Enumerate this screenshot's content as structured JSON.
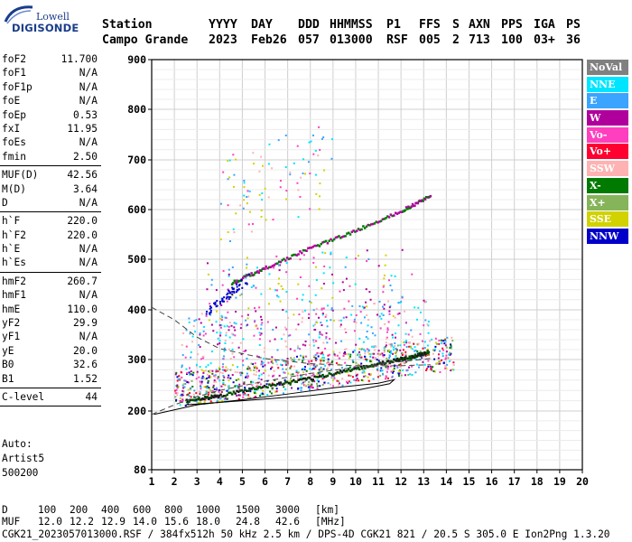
{
  "logo": {
    "brand_top": "Lowell",
    "brand_bottom": "DIGISONDE"
  },
  "header": {
    "row1": [
      "Station",
      "YYYY",
      "DAY",
      "DDD",
      "HHMMSS",
      "P1",
      "FFS",
      "S",
      "AXN",
      "PPS",
      "IGA",
      "PS"
    ],
    "row2": [
      "Campo Grande",
      "2023",
      "Feb26",
      "057",
      "013000",
      "RSF",
      "005",
      "2",
      "713",
      "100",
      "03+",
      "36"
    ]
  },
  "params": {
    "group1": [
      {
        "label": "foF2",
        "value": "11.700"
      },
      {
        "label": "foF1",
        "value": "N/A"
      },
      {
        "label": "foF1p",
        "value": "N/A"
      },
      {
        "label": "foE",
        "value": "N/A"
      },
      {
        "label": "foEp",
        "value": "0.53"
      },
      {
        "label": "fxI",
        "value": "11.95"
      },
      {
        "label": "foEs",
        "value": "N/A"
      },
      {
        "label": "fmin",
        "value": "2.50"
      }
    ],
    "group2": [
      {
        "label": "MUF(D)",
        "value": "42.56"
      },
      {
        "label": "M(D)",
        "value": "3.64"
      },
      {
        "label": "D",
        "value": "N/A"
      }
    ],
    "group3": [
      {
        "label": "h`F",
        "value": "220.0"
      },
      {
        "label": "h`F2",
        "value": "220.0"
      },
      {
        "label": "h`E",
        "value": "N/A"
      },
      {
        "label": "h`Es",
        "value": "N/A"
      }
    ],
    "group4": [
      {
        "label": "hmF2",
        "value": "260.7"
      },
      {
        "label": "hmF1",
        "value": "N/A"
      },
      {
        "label": "hmE",
        "value": "110.0"
      },
      {
        "label": "yF2",
        "value": "29.9"
      },
      {
        "label": "yF1",
        "value": "N/A"
      },
      {
        "label": "yE",
        "value": "20.0"
      },
      {
        "label": "B0",
        "value": "32.6"
      },
      {
        "label": "B1",
        "value": "1.52"
      }
    ],
    "group5": [
      {
        "label": "C-level",
        "value": "44"
      }
    ]
  },
  "auto": {
    "line1": "Auto:",
    "line2": "Artist5",
    "line3": "500200"
  },
  "legend": [
    {
      "label": "NoVal",
      "color": "#808080"
    },
    {
      "label": "NNE",
      "color": "#00e5ff"
    },
    {
      "label": "E",
      "color": "#3aa4ff"
    },
    {
      "label": "W",
      "color": "#b0009c"
    },
    {
      "label": "Vo-",
      "color": "#ff3fbf"
    },
    {
      "label": "Vo+",
      "color": "#ff0030"
    },
    {
      "label": "SSW",
      "color": "#ffb2b2"
    },
    {
      "label": "X-",
      "color": "#007a00"
    },
    {
      "label": "X+",
      "color": "#86b45a"
    },
    {
      "label": "SSE",
      "color": "#d2d200"
    },
    {
      "label": "NNW",
      "color": "#0000c8"
    }
  ],
  "chart_data": {
    "type": "scatter",
    "xlim": [
      1,
      20
    ],
    "ylim": [
      80,
      900
    ],
    "x_ticks": [
      1,
      2,
      3,
      4,
      5,
      6,
      7,
      8,
      9,
      10,
      11,
      12,
      13,
      14,
      15,
      16,
      17,
      18,
      19,
      20
    ],
    "y_ticks": [
      80,
      200,
      300,
      400,
      500,
      600,
      700,
      800,
      900
    ],
    "y_scale": "nonlinear",
    "grid": true,
    "legend_position": "right",
    "series": [
      {
        "name": "F2 trace",
        "color": "#005000",
        "x": [
          2.5,
          4,
          6,
          8,
          10,
          11.7,
          12.5,
          13.2
        ],
        "y": [
          222,
          232,
          250,
          265,
          285,
          300,
          308,
          318
        ]
      },
      {
        "name": "2nd hop",
        "color": "#b0009c",
        "x": [
          4.5,
          6,
          8,
          10,
          12,
          13.3
        ],
        "y": [
          455,
          485,
          525,
          560,
          600,
          630
        ]
      },
      {
        "name": "profile",
        "color": "#000000",
        "x": [
          1.1,
          3,
          5,
          7,
          9,
          11,
          11.7,
          11.5,
          10,
          8,
          5,
          2.5
        ],
        "y": [
          193,
          212,
          222,
          233,
          245,
          254,
          261,
          253,
          240,
          230,
          220,
          212
        ]
      }
    ]
  },
  "footer": {
    "d_label": "D",
    "d_values": [
      "100",
      "200",
      "400",
      "600",
      "800",
      "1000",
      "1500",
      "3000",
      "[km]"
    ],
    "muf_label": "MUF",
    "muf_values": [
      "12.0",
      "12.2",
      "12.9",
      "14.0",
      "15.6",
      "18.0",
      "24.8",
      "42.6",
      "[MHz]"
    ],
    "file_line": "CGK21_2023057013000.RSF / 384fx512h 50 kHz 2.5 km / DPS-4D CGK21 821 / 20.5 S 305.0 E Ion2Png 1.3.20"
  }
}
